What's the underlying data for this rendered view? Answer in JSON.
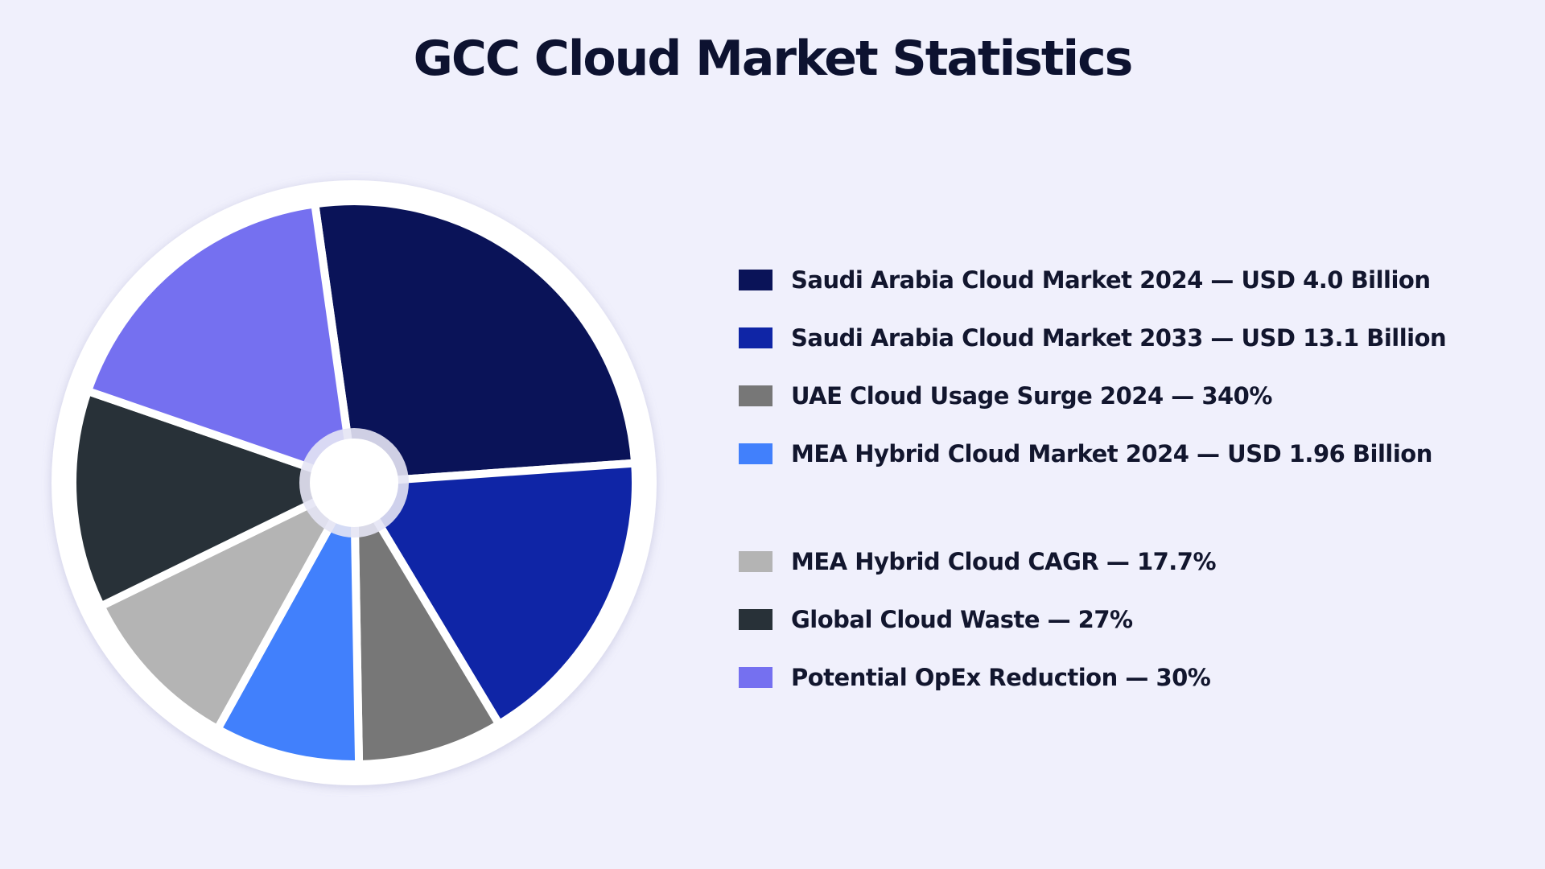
{
  "chart_data": {
    "type": "pie",
    "title": "GCC Cloud Market Statistics",
    "slices": [
      {
        "label": "Saudi Arabia Cloud Market 2024 — USD 4.0 Billion",
        "value": 4.0,
        "color": "#0a1358"
      },
      {
        "label": "Saudi Arabia Cloud Market 2033 — USD 13.1 Billion",
        "value": 13.1,
        "color": "#0f25a6"
      },
      {
        "label": "UAE Cloud Usage Surge 2024 — 340%",
        "value": 340,
        "color": "#777777"
      },
      {
        "label": "MEA Hybrid Cloud Market 2024 — USD 1.96 Billion",
        "value": 1.96,
        "color": "#4180fc"
      },
      {
        "label": "MEA Hybrid Cloud CAGR — 17.7%",
        "value": 17.7,
        "color": "#b4b4b4"
      },
      {
        "label": "Global Cloud Waste — 27%",
        "value": 27,
        "color": "#283138"
      },
      {
        "label": "Potential OpEx Reduction — 30%",
        "value": 30,
        "color": "#7570f0"
      }
    ],
    "legend_position": "right"
  }
}
